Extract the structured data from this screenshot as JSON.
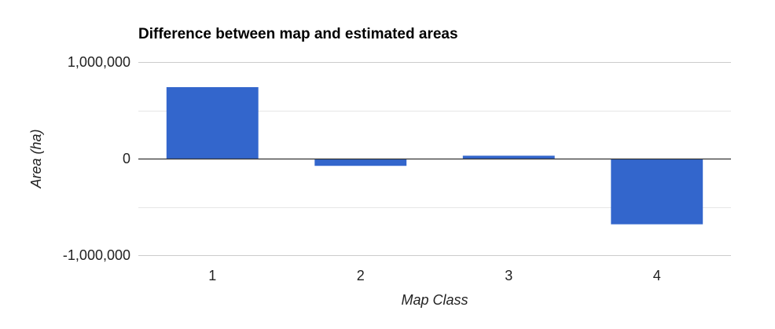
{
  "chart_data": {
    "type": "bar",
    "title": "Difference between map and estimated areas",
    "xlabel": "Map Class",
    "ylabel": "Area (ha)",
    "categories": [
      "1",
      "2",
      "3",
      "4"
    ],
    "values": [
      740000,
      -75000,
      30000,
      -680000
    ],
    "ylim": [
      -1000000,
      1000000
    ],
    "yticks": [
      1000000,
      0,
      -1000000
    ],
    "ytick_labels": [
      "1,000,000",
      "0",
      "-1,000,000"
    ],
    "minor_gridlines": [
      500000,
      -500000
    ],
    "grid": true,
    "legend": "none",
    "colors": {
      "bar": "#3366cc",
      "grid": "#cccccc",
      "minor_grid": "#e6e6e6",
      "baseline": "#333333"
    }
  }
}
